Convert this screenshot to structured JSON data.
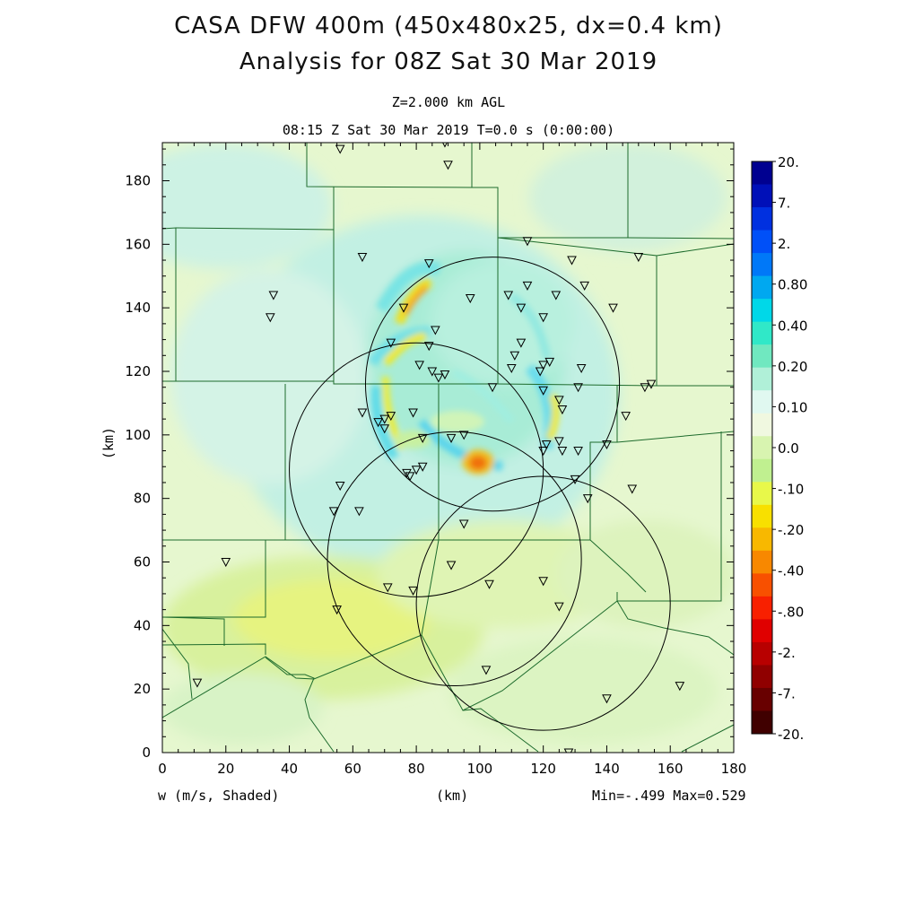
{
  "header": {
    "title_line1": "CASA DFW 400m (450x480x25, dx=0.4 km)",
    "title_line2": "Analysis for 08Z Sat 30 Mar 2019",
    "level": "Z=2.000 km AGL",
    "valid_time": "08:15 Z Sat 30 Mar 2019    T=0.0 s (0:00:00)"
  },
  "footer": {
    "variable": "w (m/s, Shaded)",
    "x_unit": "(km)",
    "min_max": "Min=-.499 Max=0.529"
  },
  "axes": {
    "y_unit": "(km)",
    "x_ticks": [
      "0",
      "20",
      "40",
      "60",
      "80",
      "100",
      "120",
      "140",
      "160",
      "180"
    ],
    "y_ticks": [
      "0",
      "20",
      "40",
      "60",
      "80",
      "100",
      "120",
      "140",
      "160",
      "180"
    ],
    "x_range": [
      0,
      180
    ],
    "y_range": [
      0,
      192
    ]
  },
  "colorbar": {
    "labels": [
      "20.",
      "7.",
      "2.",
      "0.80",
      "0.40",
      "0.20",
      "0.10",
      "0.0",
      "-.10",
      "-.20",
      "-.40",
      "-.80",
      "-2.",
      "-7.",
      "-20."
    ],
    "colors": [
      "#000090",
      "#0010b8",
      "#0030e0",
      "#0050f8",
      "#0078f8",
      "#00a8f0",
      "#00d8e8",
      "#30e8c8",
      "#70e8c0",
      "#b0f0d8",
      "#e0f8f0",
      "#f0f8e0",
      "#d8f4b0",
      "#c0f090",
      "#e8f84a",
      "#f8e000",
      "#f8b800",
      "#f88800",
      "#f85000",
      "#f82000",
      "#e00000",
      "#b80000",
      "#900000",
      "#680000",
      "#400000"
    ]
  },
  "radars": [
    {
      "cx": 120,
      "cy": 47
    },
    {
      "cx": 80,
      "cy": 89
    },
    {
      "cx": 104,
      "cy": 116
    },
    {
      "cx": 92,
      "cy": 61
    }
  ],
  "stations": [
    [
      56,
      190
    ],
    [
      89,
      192
    ],
    [
      90,
      185
    ],
    [
      63,
      156
    ],
    [
      84,
      154
    ],
    [
      115,
      161
    ],
    [
      129,
      155
    ],
    [
      150,
      156
    ],
    [
      35,
      144
    ],
    [
      34,
      137
    ],
    [
      76,
      140
    ],
    [
      97,
      143
    ],
    [
      109,
      144
    ],
    [
      115,
      147
    ],
    [
      124,
      144
    ],
    [
      133,
      147
    ],
    [
      142,
      140
    ],
    [
      113,
      140
    ],
    [
      120,
      137
    ],
    [
      86,
      133
    ],
    [
      72,
      129
    ],
    [
      84,
      128
    ],
    [
      113,
      129
    ],
    [
      111,
      125
    ],
    [
      89,
      119
    ],
    [
      81,
      122
    ],
    [
      85,
      120
    ],
    [
      87,
      118
    ],
    [
      110,
      121
    ],
    [
      119,
      120
    ],
    [
      120,
      122
    ],
    [
      122,
      123
    ],
    [
      132,
      121
    ],
    [
      104,
      115
    ],
    [
      120,
      114
    ],
    [
      131,
      115
    ],
    [
      125,
      111
    ],
    [
      126,
      108
    ],
    [
      146,
      106
    ],
    [
      152,
      115
    ],
    [
      154,
      116
    ],
    [
      63,
      107
    ],
    [
      79,
      107
    ],
    [
      70,
      105
    ],
    [
      72,
      106
    ],
    [
      68,
      104
    ],
    [
      70,
      102
    ],
    [
      82,
      99
    ],
    [
      91,
      99
    ],
    [
      95,
      100
    ],
    [
      121,
      97
    ],
    [
      125,
      98
    ],
    [
      120,
      95
    ],
    [
      126,
      95
    ],
    [
      131,
      95
    ],
    [
      140,
      97
    ],
    [
      77,
      88
    ],
    [
      80,
      89
    ],
    [
      82,
      90
    ],
    [
      78,
      87
    ],
    [
      56,
      84
    ],
    [
      130,
      86
    ],
    [
      148,
      83
    ],
    [
      134,
      80
    ],
    [
      54,
      76
    ],
    [
      62,
      76
    ],
    [
      95,
      72
    ],
    [
      91,
      59
    ],
    [
      11,
      22
    ],
    [
      20,
      60
    ],
    [
      71,
      52
    ],
    [
      79,
      51
    ],
    [
      103,
      53
    ],
    [
      120,
      54
    ],
    [
      125,
      46
    ],
    [
      55,
      45
    ],
    [
      102,
      26
    ],
    [
      140,
      17
    ],
    [
      163,
      21
    ],
    [
      128,
      0
    ]
  ],
  "extrema_labels": {
    "note": ""
  }
}
